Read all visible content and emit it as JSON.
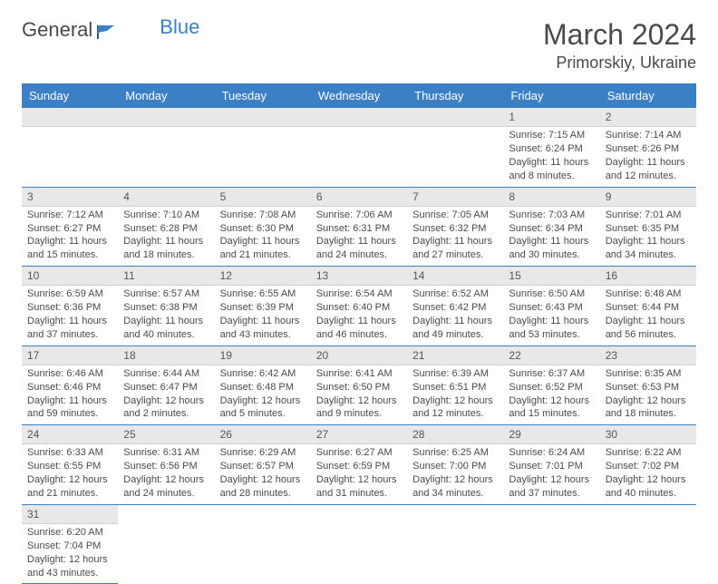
{
  "logo": {
    "text1": "General",
    "text2": "Blue"
  },
  "header": {
    "month": "March 2024",
    "location": "Primorskiy, Ukraine"
  },
  "colors": {
    "header_bg": "#3b7fc4",
    "header_text": "#ffffff",
    "daynum_bg": "#e8e8e8",
    "row_border": "#3b7fc4",
    "body_text": "#4a4a4a",
    "logo_blue": "#3b7fc4"
  },
  "weekdays": [
    "Sunday",
    "Monday",
    "Tuesday",
    "Wednesday",
    "Thursday",
    "Friday",
    "Saturday"
  ],
  "weeks": [
    [
      null,
      null,
      null,
      null,
      null,
      {
        "n": "1",
        "sr": "Sunrise: 7:15 AM",
        "ss": "Sunset: 6:24 PM",
        "dl": "Daylight: 11 hours and 8 minutes."
      },
      {
        "n": "2",
        "sr": "Sunrise: 7:14 AM",
        "ss": "Sunset: 6:26 PM",
        "dl": "Daylight: 11 hours and 12 minutes."
      }
    ],
    [
      {
        "n": "3",
        "sr": "Sunrise: 7:12 AM",
        "ss": "Sunset: 6:27 PM",
        "dl": "Daylight: 11 hours and 15 minutes."
      },
      {
        "n": "4",
        "sr": "Sunrise: 7:10 AM",
        "ss": "Sunset: 6:28 PM",
        "dl": "Daylight: 11 hours and 18 minutes."
      },
      {
        "n": "5",
        "sr": "Sunrise: 7:08 AM",
        "ss": "Sunset: 6:30 PM",
        "dl": "Daylight: 11 hours and 21 minutes."
      },
      {
        "n": "6",
        "sr": "Sunrise: 7:06 AM",
        "ss": "Sunset: 6:31 PM",
        "dl": "Daylight: 11 hours and 24 minutes."
      },
      {
        "n": "7",
        "sr": "Sunrise: 7:05 AM",
        "ss": "Sunset: 6:32 PM",
        "dl": "Daylight: 11 hours and 27 minutes."
      },
      {
        "n": "8",
        "sr": "Sunrise: 7:03 AM",
        "ss": "Sunset: 6:34 PM",
        "dl": "Daylight: 11 hours and 30 minutes."
      },
      {
        "n": "9",
        "sr": "Sunrise: 7:01 AM",
        "ss": "Sunset: 6:35 PM",
        "dl": "Daylight: 11 hours and 34 minutes."
      }
    ],
    [
      {
        "n": "10",
        "sr": "Sunrise: 6:59 AM",
        "ss": "Sunset: 6:36 PM",
        "dl": "Daylight: 11 hours and 37 minutes."
      },
      {
        "n": "11",
        "sr": "Sunrise: 6:57 AM",
        "ss": "Sunset: 6:38 PM",
        "dl": "Daylight: 11 hours and 40 minutes."
      },
      {
        "n": "12",
        "sr": "Sunrise: 6:55 AM",
        "ss": "Sunset: 6:39 PM",
        "dl": "Daylight: 11 hours and 43 minutes."
      },
      {
        "n": "13",
        "sr": "Sunrise: 6:54 AM",
        "ss": "Sunset: 6:40 PM",
        "dl": "Daylight: 11 hours and 46 minutes."
      },
      {
        "n": "14",
        "sr": "Sunrise: 6:52 AM",
        "ss": "Sunset: 6:42 PM",
        "dl": "Daylight: 11 hours and 49 minutes."
      },
      {
        "n": "15",
        "sr": "Sunrise: 6:50 AM",
        "ss": "Sunset: 6:43 PM",
        "dl": "Daylight: 11 hours and 53 minutes."
      },
      {
        "n": "16",
        "sr": "Sunrise: 6:48 AM",
        "ss": "Sunset: 6:44 PM",
        "dl": "Daylight: 11 hours and 56 minutes."
      }
    ],
    [
      {
        "n": "17",
        "sr": "Sunrise: 6:46 AM",
        "ss": "Sunset: 6:46 PM",
        "dl": "Daylight: 11 hours and 59 minutes."
      },
      {
        "n": "18",
        "sr": "Sunrise: 6:44 AM",
        "ss": "Sunset: 6:47 PM",
        "dl": "Daylight: 12 hours and 2 minutes."
      },
      {
        "n": "19",
        "sr": "Sunrise: 6:42 AM",
        "ss": "Sunset: 6:48 PM",
        "dl": "Daylight: 12 hours and 5 minutes."
      },
      {
        "n": "20",
        "sr": "Sunrise: 6:41 AM",
        "ss": "Sunset: 6:50 PM",
        "dl": "Daylight: 12 hours and 9 minutes."
      },
      {
        "n": "21",
        "sr": "Sunrise: 6:39 AM",
        "ss": "Sunset: 6:51 PM",
        "dl": "Daylight: 12 hours and 12 minutes."
      },
      {
        "n": "22",
        "sr": "Sunrise: 6:37 AM",
        "ss": "Sunset: 6:52 PM",
        "dl": "Daylight: 12 hours and 15 minutes."
      },
      {
        "n": "23",
        "sr": "Sunrise: 6:35 AM",
        "ss": "Sunset: 6:53 PM",
        "dl": "Daylight: 12 hours and 18 minutes."
      }
    ],
    [
      {
        "n": "24",
        "sr": "Sunrise: 6:33 AM",
        "ss": "Sunset: 6:55 PM",
        "dl": "Daylight: 12 hours and 21 minutes."
      },
      {
        "n": "25",
        "sr": "Sunrise: 6:31 AM",
        "ss": "Sunset: 6:56 PM",
        "dl": "Daylight: 12 hours and 24 minutes."
      },
      {
        "n": "26",
        "sr": "Sunrise: 6:29 AM",
        "ss": "Sunset: 6:57 PM",
        "dl": "Daylight: 12 hours and 28 minutes."
      },
      {
        "n": "27",
        "sr": "Sunrise: 6:27 AM",
        "ss": "Sunset: 6:59 PM",
        "dl": "Daylight: 12 hours and 31 minutes."
      },
      {
        "n": "28",
        "sr": "Sunrise: 6:25 AM",
        "ss": "Sunset: 7:00 PM",
        "dl": "Daylight: 12 hours and 34 minutes."
      },
      {
        "n": "29",
        "sr": "Sunrise: 6:24 AM",
        "ss": "Sunset: 7:01 PM",
        "dl": "Daylight: 12 hours and 37 minutes."
      },
      {
        "n": "30",
        "sr": "Sunrise: 6:22 AM",
        "ss": "Sunset: 7:02 PM",
        "dl": "Daylight: 12 hours and 40 minutes."
      }
    ],
    [
      {
        "n": "31",
        "sr": "Sunrise: 6:20 AM",
        "ss": "Sunset: 7:04 PM",
        "dl": "Daylight: 12 hours and 43 minutes."
      },
      null,
      null,
      null,
      null,
      null,
      null
    ]
  ]
}
